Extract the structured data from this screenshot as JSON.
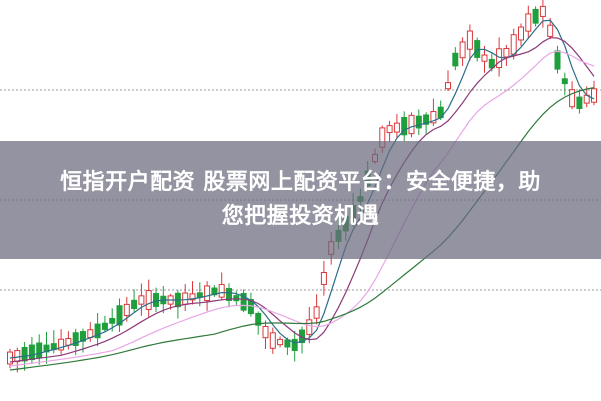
{
  "headline": {
    "line1": "恒指开户配资 股票网上配资平台：安全便捷，助",
    "line2": "您把握投资机遇"
  },
  "colors": {
    "up_candle": "#d9383b",
    "down_candle": "#1f9e3c",
    "ma_short": "#2a6f8a",
    "ma_mid": "#8b3a7a",
    "ma_long": "#e7a6e6",
    "ma_longest": "#2f7a3a",
    "overlay": "#69697d"
  }
}
